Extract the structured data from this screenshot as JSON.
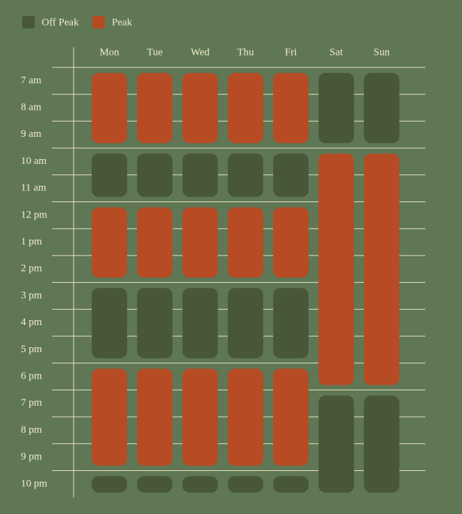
{
  "legend": [
    {
      "label": "Off Peak",
      "color": "#48573a"
    },
    {
      "label": "Peak",
      "color": "#b64b24"
    }
  ],
  "days": [
    "Mon",
    "Tue",
    "Wed",
    "Thu",
    "Fri",
    "Sat",
    "Sun"
  ],
  "hours": [
    "7 am",
    "8 am",
    "9 am",
    "10 am",
    "11 am",
    "12 pm",
    "1 pm",
    "2 pm",
    "3 pm",
    "4 pm",
    "5 pm",
    "6 pm",
    "7 pm",
    "8 pm",
    "9 pm",
    "10 pm"
  ],
  "schedule": [
    [
      {
        "start": 7,
        "end": 10,
        "kind": 1
      },
      {
        "start": 10,
        "end": 12,
        "kind": 0
      },
      {
        "start": 12,
        "end": 15,
        "kind": 1
      },
      {
        "start": 15,
        "end": 18,
        "kind": 0
      },
      {
        "start": 18,
        "end": 22,
        "kind": 1
      },
      {
        "start": 22,
        "end": 23,
        "kind": 0
      }
    ],
    [
      {
        "start": 7,
        "end": 10,
        "kind": 1
      },
      {
        "start": 10,
        "end": 12,
        "kind": 0
      },
      {
        "start": 12,
        "end": 15,
        "kind": 1
      },
      {
        "start": 15,
        "end": 18,
        "kind": 0
      },
      {
        "start": 18,
        "end": 22,
        "kind": 1
      },
      {
        "start": 22,
        "end": 23,
        "kind": 0
      }
    ],
    [
      {
        "start": 7,
        "end": 10,
        "kind": 1
      },
      {
        "start": 10,
        "end": 12,
        "kind": 0
      },
      {
        "start": 12,
        "end": 15,
        "kind": 1
      },
      {
        "start": 15,
        "end": 18,
        "kind": 0
      },
      {
        "start": 18,
        "end": 22,
        "kind": 1
      },
      {
        "start": 22,
        "end": 23,
        "kind": 0
      }
    ],
    [
      {
        "start": 7,
        "end": 10,
        "kind": 1
      },
      {
        "start": 10,
        "end": 12,
        "kind": 0
      },
      {
        "start": 12,
        "end": 15,
        "kind": 1
      },
      {
        "start": 15,
        "end": 18,
        "kind": 0
      },
      {
        "start": 18,
        "end": 22,
        "kind": 1
      },
      {
        "start": 22,
        "end": 23,
        "kind": 0
      }
    ],
    [
      {
        "start": 7,
        "end": 10,
        "kind": 1
      },
      {
        "start": 10,
        "end": 12,
        "kind": 0
      },
      {
        "start": 12,
        "end": 15,
        "kind": 1
      },
      {
        "start": 15,
        "end": 18,
        "kind": 0
      },
      {
        "start": 18,
        "end": 22,
        "kind": 1
      },
      {
        "start": 22,
        "end": 23,
        "kind": 0
      }
    ],
    [
      {
        "start": 7,
        "end": 10,
        "kind": 0
      },
      {
        "start": 10,
        "end": 19,
        "kind": 1
      },
      {
        "start": 19,
        "end": 23,
        "kind": 0
      }
    ],
    [
      {
        "start": 7,
        "end": 10,
        "kind": 0
      },
      {
        "start": 10,
        "end": 19,
        "kind": 1
      },
      {
        "start": 19,
        "end": 23,
        "kind": 0
      }
    ]
  ]
}
